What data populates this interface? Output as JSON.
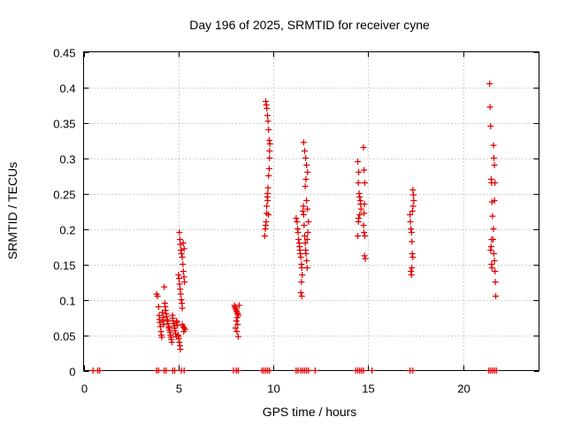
{
  "chart_data": {
    "type": "scatter",
    "title": "Day 196 of 2025, SRMTID for receiver cyne",
    "xlabel": "GPS time / hours",
    "ylabel": "SRMTID / TECUs",
    "xlim": [
      0,
      24
    ],
    "ylim": [
      0,
      0.45
    ],
    "xticks": [
      0,
      5,
      10,
      15,
      20
    ],
    "xtick_labels": [
      "0",
      "5",
      "10",
      "15",
      "20"
    ],
    "yticks": [
      0,
      0.05,
      0.1,
      0.15,
      0.2,
      0.25,
      0.3,
      0.35,
      0.4,
      0.45
    ],
    "ytick_labels": [
      "0",
      "0.05",
      "0.1",
      "0.15",
      "0.2",
      "0.25",
      "0.3",
      "0.35",
      "0.4",
      "0.45"
    ],
    "grid": true,
    "marker": "+",
    "series": [
      {
        "name": "SRMTID",
        "color": "#e00000",
        "points": [
          [
            0.5,
            0
          ],
          [
            0.75,
            0
          ],
          [
            0.85,
            0
          ],
          [
            3.85,
            0
          ],
          [
            3.95,
            0
          ],
          [
            4.25,
            0
          ],
          [
            4.35,
            0
          ],
          [
            4.7,
            0
          ],
          [
            4.8,
            0
          ],
          [
            5.15,
            0
          ],
          [
            5.3,
            0
          ],
          [
            7.9,
            0
          ],
          [
            8.05,
            0
          ],
          [
            8.15,
            0
          ],
          [
            9.4,
            0
          ],
          [
            9.5,
            0
          ],
          [
            9.6,
            0
          ],
          [
            9.7,
            0
          ],
          [
            9.8,
            0
          ],
          [
            11.2,
            0
          ],
          [
            11.3,
            0
          ],
          [
            11.45,
            0
          ],
          [
            11.55,
            0
          ],
          [
            11.65,
            0
          ],
          [
            11.75,
            0
          ],
          [
            11.85,
            0
          ],
          [
            12.2,
            0
          ],
          [
            14.35,
            0
          ],
          [
            14.45,
            0
          ],
          [
            14.55,
            0
          ],
          [
            14.65,
            0
          ],
          [
            14.75,
            0
          ],
          [
            15.2,
            0
          ],
          [
            17.2,
            0
          ],
          [
            17.35,
            0
          ],
          [
            21.35,
            0
          ],
          [
            21.45,
            0
          ],
          [
            21.55,
            0
          ],
          [
            21.65,
            0
          ],
          [
            21.75,
            0
          ],
          [
            3.85,
            0.108
          ],
          [
            3.9,
            0.105
          ],
          [
            3.95,
            0.09
          ],
          [
            3.98,
            0.078
          ],
          [
            4.0,
            0.072
          ],
          [
            4.02,
            0.068
          ],
          [
            4.05,
            0.062
          ],
          [
            4.08,
            0.055
          ],
          [
            4.1,
            0.05
          ],
          [
            4.12,
            0.047
          ],
          [
            4.15,
            0.082
          ],
          [
            4.18,
            0.075
          ],
          [
            4.2,
            0.07
          ],
          [
            4.22,
            0.065
          ],
          [
            4.25,
            0.118
          ],
          [
            4.28,
            0.095
          ],
          [
            4.3,
            0.09
          ],
          [
            4.32,
            0.085
          ],
          [
            4.35,
            0.08
          ],
          [
            4.38,
            0.076
          ],
          [
            4.4,
            0.072
          ],
          [
            4.42,
            0.07
          ],
          [
            4.45,
            0.066
          ],
          [
            4.48,
            0.062
          ],
          [
            4.5,
            0.06
          ],
          [
            4.52,
            0.057
          ],
          [
            4.55,
            0.054
          ],
          [
            4.58,
            0.05
          ],
          [
            4.6,
            0.047
          ],
          [
            4.62,
            0.044
          ],
          [
            4.65,
            0.04
          ],
          [
            4.68,
            0.078
          ],
          [
            4.7,
            0.074
          ],
          [
            4.72,
            0.07
          ],
          [
            4.75,
            0.066
          ],
          [
            4.78,
            0.063
          ],
          [
            4.8,
            0.06
          ],
          [
            4.82,
            0.056
          ],
          [
            4.85,
            0.052
          ],
          [
            4.88,
            0.048
          ],
          [
            4.9,
            0.07
          ],
          [
            4.92,
            0.068
          ],
          [
            4.95,
            0.064
          ],
          [
            4.98,
            0.05
          ],
          [
            5.0,
            0.048
          ],
          [
            5.02,
            0.045
          ],
          [
            5.05,
            0.04
          ],
          [
            5.08,
            0.035
          ],
          [
            5.1,
            0.03
          ],
          [
            5.0,
            0.135
          ],
          [
            5.03,
            0.13
          ],
          [
            5.06,
            0.122
          ],
          [
            5.09,
            0.115
          ],
          [
            5.12,
            0.108
          ],
          [
            5.15,
            0.1
          ],
          [
            5.18,
            0.095
          ],
          [
            5.2,
            0.088
          ],
          [
            5.05,
            0.195
          ],
          [
            5.08,
            0.185
          ],
          [
            5.1,
            0.178
          ],
          [
            5.13,
            0.17
          ],
          [
            5.16,
            0.165
          ],
          [
            5.2,
            0.16
          ],
          [
            5.23,
            0.15
          ],
          [
            5.26,
            0.14
          ],
          [
            5.29,
            0.132
          ],
          [
            5.32,
            0.125
          ],
          [
            5.3,
            0.172
          ],
          [
            5.25,
            0.18
          ],
          [
            5.2,
            0.065
          ],
          [
            5.25,
            0.062
          ],
          [
            5.3,
            0.06
          ],
          [
            5.35,
            0.058
          ],
          [
            5.28,
            0.055
          ],
          [
            7.95,
            0.092
          ],
          [
            7.98,
            0.09
          ],
          [
            8.0,
            0.088
          ],
          [
            8.03,
            0.086
          ],
          [
            8.06,
            0.084
          ],
          [
            8.09,
            0.082
          ],
          [
            8.12,
            0.08
          ],
          [
            8.15,
            0.078
          ],
          [
            8.1,
            0.075
          ],
          [
            8.05,
            0.07
          ],
          [
            8.12,
            0.065
          ],
          [
            8.0,
            0.06
          ],
          [
            8.08,
            0.055
          ],
          [
            8.15,
            0.048
          ],
          [
            8.2,
            0.092
          ],
          [
            9.55,
            0.19
          ],
          [
            9.58,
            0.2
          ],
          [
            9.6,
            0.205
          ],
          [
            9.62,
            0.21
          ],
          [
            9.65,
            0.232
          ],
          [
            9.68,
            0.245
          ],
          [
            9.7,
            0.25
          ],
          [
            9.72,
            0.258
          ],
          [
            9.75,
            0.275
          ],
          [
            9.78,
            0.285
          ],
          [
            9.8,
            0.3
          ],
          [
            9.6,
            0.38
          ],
          [
            9.63,
            0.375
          ],
          [
            9.66,
            0.37
          ],
          [
            9.69,
            0.36
          ],
          [
            9.72,
            0.352
          ],
          [
            9.75,
            0.34
          ],
          [
            9.78,
            0.325
          ],
          [
            9.8,
            0.31
          ],
          [
            9.82,
            0.32
          ],
          [
            9.65,
            0.222
          ],
          [
            9.7,
            0.24
          ],
          [
            9.74,
            0.22
          ],
          [
            11.2,
            0.215
          ],
          [
            11.25,
            0.21
          ],
          [
            11.28,
            0.2
          ],
          [
            11.3,
            0.195
          ],
          [
            11.33,
            0.185
          ],
          [
            11.36,
            0.18
          ],
          [
            11.38,
            0.175
          ],
          [
            11.4,
            0.17
          ],
          [
            11.42,
            0.165
          ],
          [
            11.45,
            0.16
          ],
          [
            11.48,
            0.15
          ],
          [
            11.5,
            0.145
          ],
          [
            11.52,
            0.135
          ],
          [
            11.48,
            0.125
          ],
          [
            11.45,
            0.11
          ],
          [
            11.5,
            0.105
          ],
          [
            11.55,
            0.225
          ],
          [
            11.58,
            0.232
          ],
          [
            11.6,
            0.22
          ],
          [
            11.62,
            0.205
          ],
          [
            11.65,
            0.19
          ],
          [
            11.68,
            0.18
          ],
          [
            11.7,
            0.17
          ],
          [
            11.72,
            0.165
          ],
          [
            11.75,
            0.155
          ],
          [
            11.78,
            0.145
          ],
          [
            11.6,
            0.322
          ],
          [
            11.65,
            0.31
          ],
          [
            11.7,
            0.3
          ],
          [
            11.75,
            0.29
          ],
          [
            11.8,
            0.28
          ],
          [
            11.72,
            0.27
          ],
          [
            11.68,
            0.26
          ],
          [
            11.75,
            0.24
          ],
          [
            11.8,
            0.228
          ],
          [
            11.85,
            0.21
          ],
          [
            11.82,
            0.195
          ],
          [
            11.78,
            0.185
          ],
          [
            14.45,
            0.295
          ],
          [
            14.5,
            0.28
          ],
          [
            14.48,
            0.265
          ],
          [
            14.52,
            0.25
          ],
          [
            14.55,
            0.245
          ],
          [
            14.58,
            0.24
          ],
          [
            14.6,
            0.235
          ],
          [
            14.62,
            0.228
          ],
          [
            14.55,
            0.22
          ],
          [
            14.5,
            0.215
          ],
          [
            14.48,
            0.21
          ],
          [
            14.45,
            0.19
          ],
          [
            14.75,
            0.315
          ],
          [
            14.78,
            0.283
          ],
          [
            14.82,
            0.265
          ],
          [
            14.8,
            0.235
          ],
          [
            14.78,
            0.222
          ],
          [
            14.75,
            0.205
          ],
          [
            14.78,
            0.195
          ],
          [
            14.82,
            0.19
          ],
          [
            14.8,
            0.162
          ],
          [
            14.85,
            0.158
          ],
          [
            17.2,
            0.22
          ],
          [
            17.22,
            0.21
          ],
          [
            17.25,
            0.2
          ],
          [
            17.28,
            0.195
          ],
          [
            17.3,
            0.182
          ],
          [
            17.32,
            0.165
          ],
          [
            17.35,
            0.16
          ],
          [
            17.3,
            0.145
          ],
          [
            17.25,
            0.14
          ],
          [
            17.28,
            0.135
          ],
          [
            17.35,
            0.255
          ],
          [
            17.38,
            0.248
          ],
          [
            17.4,
            0.24
          ],
          [
            17.36,
            0.232
          ],
          [
            17.33,
            0.225
          ],
          [
            21.4,
            0.405
          ],
          [
            21.42,
            0.372
          ],
          [
            21.45,
            0.345
          ],
          [
            21.48,
            0.27
          ],
          [
            21.5,
            0.265
          ],
          [
            21.52,
            0.238
          ],
          [
            21.55,
            0.218
          ],
          [
            21.5,
            0.185
          ],
          [
            21.48,
            0.175
          ],
          [
            21.45,
            0.17
          ],
          [
            21.5,
            0.15
          ],
          [
            21.52,
            0.145
          ],
          [
            21.6,
            0.318
          ],
          [
            21.62,
            0.3
          ],
          [
            21.65,
            0.29
          ],
          [
            21.68,
            0.265
          ],
          [
            21.65,
            0.24
          ],
          [
            21.6,
            0.2
          ],
          [
            21.58,
            0.185
          ],
          [
            21.62,
            0.165
          ],
          [
            21.65,
            0.155
          ],
          [
            21.68,
            0.14
          ],
          [
            21.7,
            0.125
          ],
          [
            21.72,
            0.105
          ]
        ]
      }
    ]
  }
}
